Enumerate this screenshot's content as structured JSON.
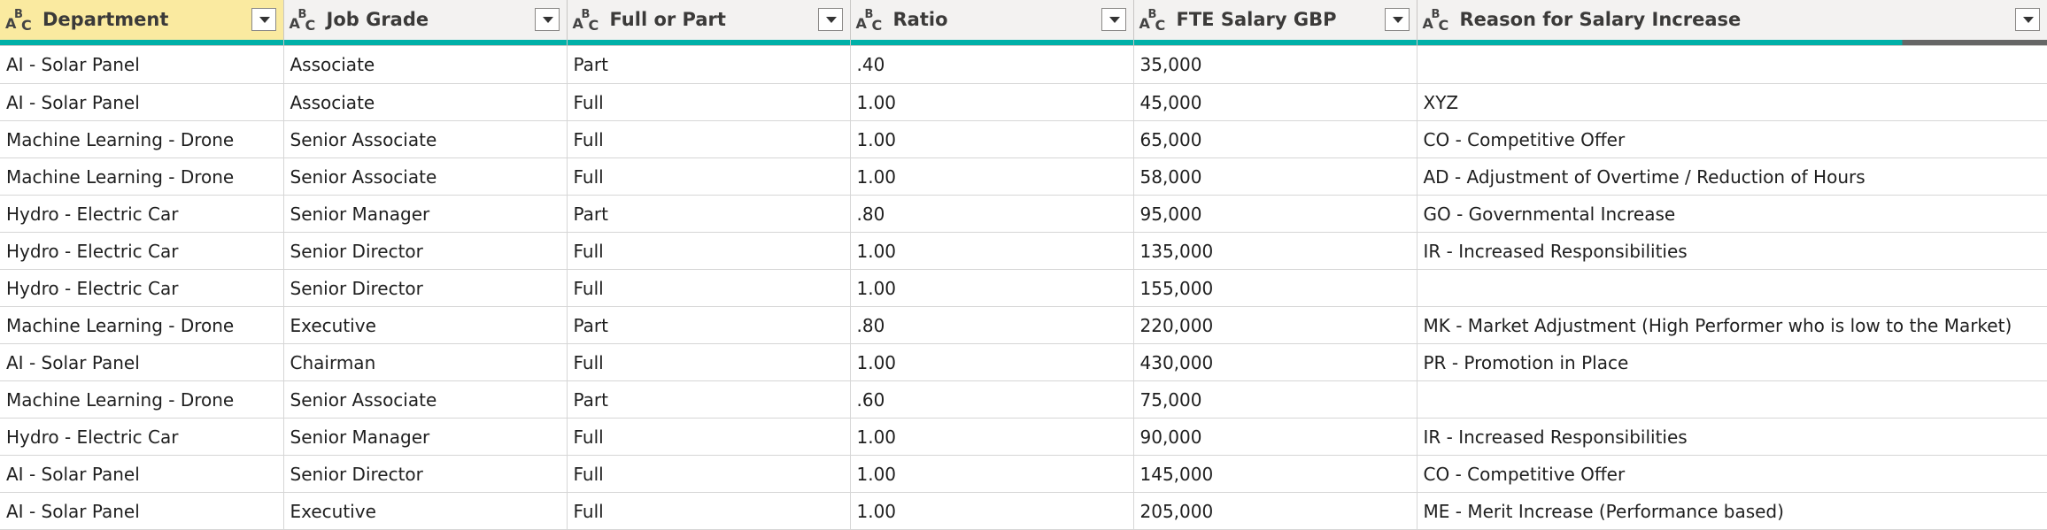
{
  "columns": [
    {
      "label": "Department",
      "type_icon": "text-type-icon",
      "selected": true
    },
    {
      "label": "Job Grade",
      "type_icon": "text-type-icon",
      "selected": false
    },
    {
      "label": "Full or Part",
      "type_icon": "text-type-icon",
      "selected": false
    },
    {
      "label": "Ratio",
      "type_icon": "text-type-icon",
      "selected": false
    },
    {
      "label": "FTE Salary GBP",
      "type_icon": "text-type-icon",
      "selected": false
    },
    {
      "label": "Reason for Salary Increase",
      "type_icon": "text-type-icon",
      "selected": false
    }
  ],
  "type_icon_glyph": {
    "a": "A",
    "b": "B",
    "c": "C"
  },
  "colors": {
    "quality_valid": "#00b0a8",
    "quality_empty": "#666666",
    "selected_header": "#faeaa0"
  },
  "rows": [
    [
      "AI - Solar Panel",
      "Associate",
      "Part",
      ".40",
      "35,000",
      ""
    ],
    [
      "AI - Solar Panel",
      "Associate",
      "Full",
      "1.00",
      "45,000",
      "XYZ"
    ],
    [
      "Machine Learning - Drone",
      "Senior Associate",
      "Full",
      "1.00",
      "65,000",
      "CO - Competitive Offer"
    ],
    [
      "Machine Learning - Drone",
      "Senior Associate",
      "Full",
      "1.00",
      "58,000",
      "AD - Adjustment of Overtime / Reduction of Hours"
    ],
    [
      "Hydro - Electric Car",
      "Senior Manager",
      "Part",
      ".80",
      "95,000",
      "GO - Governmental Increase"
    ],
    [
      "Hydro - Electric Car",
      "Senior Director",
      "Full",
      "1.00",
      "135,000",
      "IR - Increased Responsibilities"
    ],
    [
      "Hydro - Electric Car",
      "Senior Director",
      "Full",
      "1.00",
      "155,000",
      ""
    ],
    [
      "Machine Learning - Drone",
      "Executive",
      "Part",
      ".80",
      "220,000",
      "MK - Market Adjustment (High Performer who is low to the Market)"
    ],
    [
      "AI - Solar Panel",
      "Chairman",
      "Full",
      "1.00",
      "430,000",
      "PR - Promotion in Place"
    ],
    [
      "Machine Learning - Drone",
      "Senior Associate",
      "Part",
      ".60",
      "75,000",
      ""
    ],
    [
      "Hydro - Electric Car",
      "Senior Manager",
      "Full",
      "1.00",
      "90,000",
      "IR - Increased Responsibilities"
    ],
    [
      "AI - Solar Panel",
      "Senior Director",
      "Full",
      "1.00",
      "145,000",
      "CO - Competitive Offer"
    ],
    [
      "AI - Solar Panel",
      "Executive",
      "Full",
      "1.00",
      "205,000",
      "ME - Merit Increase (Performance based)"
    ]
  ]
}
